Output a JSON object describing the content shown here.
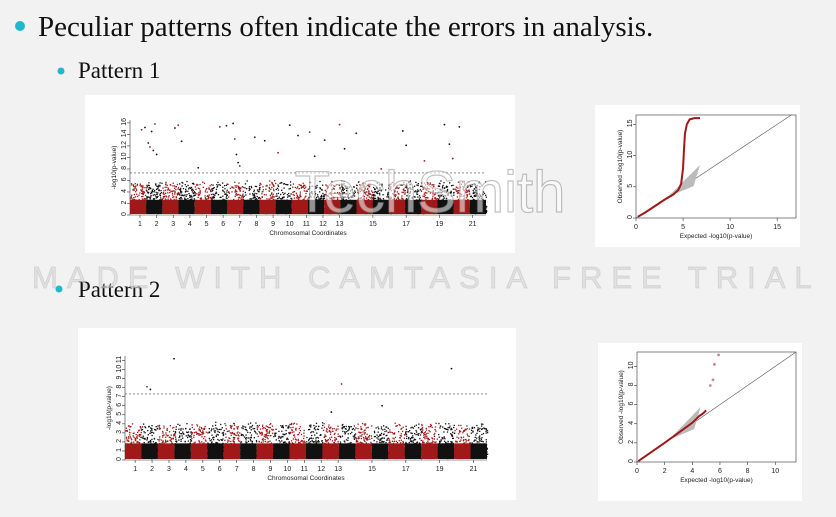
{
  "slide": {
    "bullet": "Peculiar patterns often indicate the errors in analysis.",
    "patterns": [
      {
        "label": "Pattern 1",
        "manhattan": {
          "type": "manhattan",
          "xlabel": "Chromosomal Coordinates",
          "ylabel": "-log10(p-value)",
          "xlim": [
            0.4,
            21.8
          ],
          "ylim": [
            0,
            16.5
          ],
          "yticks": [
            0,
            2,
            4,
            6,
            8,
            10,
            12,
            14,
            16
          ],
          "xticks": [
            1,
            2,
            3,
            4,
            5,
            6,
            7,
            8,
            9,
            10,
            11,
            12,
            13,
            15,
            17,
            19,
            21
          ],
          "threshold": 7.3,
          "colors": [
            "#a01818",
            "#111111"
          ],
          "x": [
            1.1,
            1.3,
            1.5,
            1.6,
            1.7,
            1.8,
            1.9,
            2.0,
            3.1,
            3.3,
            3.5,
            4.5,
            5.8,
            6.2,
            6.6,
            6.7,
            6.8,
            6.9,
            7.0,
            7.9,
            8.5,
            9.3,
            10.0,
            10.5,
            11.2,
            11.5,
            12.1,
            13.0,
            13.3,
            14.0,
            15.5,
            16.8,
            17.0,
            18.1,
            19.3,
            19.6,
            19.8,
            20.2
          ],
          "values": [
            14.8,
            15.2,
            12.5,
            11.8,
            14.5,
            11.2,
            15.8,
            10.5,
            15.1,
            15.6,
            12.8,
            8.2,
            15.3,
            15.5,
            15.9,
            13.2,
            10.5,
            9.1,
            8.5,
            13.5,
            12.9,
            10.8,
            15.6,
            13.8,
            14.4,
            10.2,
            13.0,
            15.7,
            11.5,
            14.2,
            8.0,
            14.6,
            12.1,
            9.4,
            15.7,
            12.3,
            9.8,
            15.3
          ]
        },
        "qq": {
          "type": "qq",
          "xlabel": "Expected -log10(p-value)",
          "ylabel": "Observed -log10(p-value)",
          "xlim": [
            0,
            17
          ],
          "ylim": [
            0,
            16.5
          ],
          "xticks": [
            0,
            5,
            10,
            15
          ],
          "yticks": [
            0,
            5,
            10,
            15
          ],
          "series": [
            {
              "mode": "line",
              "color": "#a01818",
              "x": [
                0.2,
                1,
                2,
                3,
                4,
                4.5,
                4.8,
                5,
                5.1,
                5.2,
                5.4,
                5.7,
                6.2,
                6.8
              ],
              "values": [
                0.2,
                0.9,
                1.9,
                2.9,
                3.8,
                4.5,
                5.5,
                8,
                11,
                13.5,
                15,
                15.8,
                16,
                16
              ]
            }
          ]
        }
      },
      {
        "label": "Pattern 2",
        "manhattan": {
          "type": "manhattan",
          "xlabel": "Chromosomal Coordinates",
          "ylabel": "-log10(p-value)",
          "xlim": [
            0.4,
            21.8
          ],
          "ylim": [
            0,
            11.5
          ],
          "yticks": [
            0,
            1,
            2,
            3,
            4,
            5,
            6,
            7,
            8,
            9,
            10,
            11
          ],
          "xticks": [
            1,
            2,
            3,
            4,
            5,
            6,
            7,
            8,
            9,
            10,
            11,
            12,
            13,
            15,
            17,
            19,
            21
          ],
          "threshold": 7.3,
          "colors": [
            "#a01818",
            "#111111"
          ],
          "x": [
            1.7,
            1.9,
            3.3,
            13.2,
            19.7,
            15.6,
            12.6
          ],
          "values": [
            8.1,
            7.8,
            11.2,
            8.4,
            10.1,
            6.0,
            5.3
          ]
        },
        "qq": {
          "type": "qq",
          "xlabel": "Expected -log10(p-value)",
          "ylabel": "Observed -log10(p-value)",
          "xlim": [
            0,
            11.5
          ],
          "ylim": [
            0,
            11.5
          ],
          "xticks": [
            0,
            2,
            4,
            6,
            8,
            10
          ],
          "yticks": [
            0,
            2,
            4,
            6,
            8,
            10
          ],
          "series": [
            {
              "mode": "line",
              "color": "#a01818",
              "x": [
                0.1,
                1,
                2,
                3,
                4,
                4.5,
                4.8,
                5.0
              ],
              "values": [
                0.1,
                1,
                2,
                3.05,
                4.1,
                4.8,
                5.1,
                5.4
              ]
            },
            {
              "mode": "points",
              "color": "#c98a8a",
              "x": [
                5.3,
                5.5,
                5.6,
                5.9
              ],
              "values": [
                8.0,
                8.6,
                10.2,
                11.2
              ]
            }
          ]
        }
      }
    ]
  },
  "watermark": {
    "logo": "TechSmith",
    "banner": "MADE WITH CAMTASIA FREE TRIAL"
  }
}
